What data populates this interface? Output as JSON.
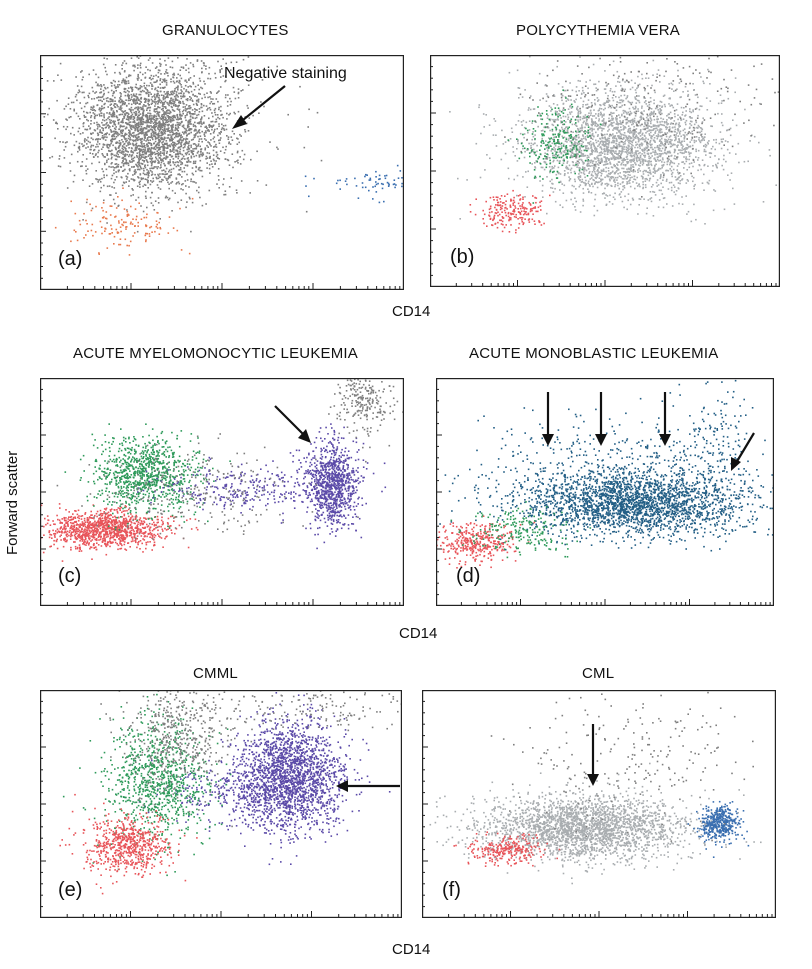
{
  "axis_label_x": "CD14",
  "axis_label_y": "Forward scatter",
  "colors": {
    "gray": "#7f7f7f",
    "light_gray": "#a9adb0",
    "red": "#e8555a",
    "orange": "#e87a4e",
    "green": "#2e9a5a",
    "purple": "#5b4aa8",
    "blue": "#3a6fb0",
    "teal": "#235f86"
  },
  "chart_data": [
    {
      "type": "scatter",
      "panel": "(a)",
      "title": "GRANULOCYTES",
      "xlabel": "CD14",
      "ylabel": "",
      "annotations": [
        "Negative staining"
      ],
      "populations": [
        {
          "color": "gray",
          "center": [
            0.3,
            0.68
          ],
          "spread": [
            0.1,
            0.13
          ],
          "n": 2600
        },
        {
          "color": "gray",
          "center": [
            0.34,
            0.78
          ],
          "spread": [
            0.14,
            0.16
          ],
          "n": 400
        },
        {
          "color": "orange",
          "center": [
            0.22,
            0.28
          ],
          "spread": [
            0.07,
            0.05
          ],
          "n": 140
        },
        {
          "color": "blue",
          "center": [
            0.9,
            0.46
          ],
          "spread": [
            0.07,
            0.04
          ],
          "n": 60
        }
      ]
    },
    {
      "type": "scatter",
      "panel": "(b)",
      "title": "POLYCYTHEMIA VERA",
      "xlabel": "",
      "ylabel": "",
      "annotations": [],
      "populations": [
        {
          "color": "light_gray",
          "center": [
            0.54,
            0.62
          ],
          "spread": [
            0.14,
            0.12
          ],
          "n": 2600
        },
        {
          "color": "green",
          "center": [
            0.36,
            0.62
          ],
          "spread": [
            0.05,
            0.08
          ],
          "n": 220
        },
        {
          "color": "red",
          "center": [
            0.23,
            0.33
          ],
          "spread": [
            0.05,
            0.04
          ],
          "n": 200
        },
        {
          "color": "gray",
          "center": [
            0.62,
            0.8
          ],
          "spread": [
            0.18,
            0.14
          ],
          "n": 250
        }
      ]
    },
    {
      "type": "scatter",
      "panel": "(c)",
      "title": "ACUTE MYELOMONOCYTIC LEUKEMIA",
      "xlabel": "CD14",
      "ylabel": "Forward scatter",
      "annotations": [],
      "populations": [
        {
          "color": "red",
          "center": [
            0.18,
            0.34
          ],
          "spread": [
            0.08,
            0.04
          ],
          "n": 1100
        },
        {
          "color": "green",
          "center": [
            0.29,
            0.58
          ],
          "spread": [
            0.07,
            0.08
          ],
          "n": 900
        },
        {
          "color": "purple",
          "center": [
            0.8,
            0.54
          ],
          "spread": [
            0.035,
            0.09
          ],
          "n": 900
        },
        {
          "color": "purple",
          "center": [
            0.58,
            0.52
          ],
          "spread": [
            0.13,
            0.05
          ],
          "n": 300
        },
        {
          "color": "gray",
          "center": [
            0.89,
            0.9
          ],
          "spread": [
            0.04,
            0.08
          ],
          "n": 250
        },
        {
          "color": "gray",
          "center": [
            0.42,
            0.5
          ],
          "spread": [
            0.14,
            0.1
          ],
          "n": 250
        }
      ]
    },
    {
      "type": "scatter",
      "panel": "(d)",
      "title": "ACUTE MONOBLASTIC LEUKEMIA",
      "xlabel": "",
      "ylabel": "",
      "annotations": [],
      "populations": [
        {
          "color": "teal",
          "center": [
            0.58,
            0.45
          ],
          "spread": [
            0.17,
            0.07
          ],
          "n": 2300
        },
        {
          "color": "teal",
          "center": [
            0.52,
            0.6
          ],
          "spread": [
            0.2,
            0.12
          ],
          "n": 500
        },
        {
          "color": "red",
          "center": [
            0.11,
            0.28
          ],
          "spread": [
            0.06,
            0.04
          ],
          "n": 350
        },
        {
          "color": "green",
          "center": [
            0.25,
            0.34
          ],
          "spread": [
            0.08,
            0.05
          ],
          "n": 200
        },
        {
          "color": "teal",
          "center": [
            0.83,
            0.72
          ],
          "spread": [
            0.06,
            0.14
          ],
          "n": 150
        }
      ]
    },
    {
      "type": "scatter",
      "panel": "(e)",
      "title": "CMML",
      "xlabel": "",
      "ylabel": "",
      "annotations": [],
      "populations": [
        {
          "color": "purple",
          "center": [
            0.69,
            0.62
          ],
          "spread": [
            0.07,
            0.12
          ],
          "n": 1900
        },
        {
          "color": "purple",
          "center": [
            0.55,
            0.55
          ],
          "spread": [
            0.11,
            0.07
          ],
          "n": 300
        },
        {
          "color": "green",
          "center": [
            0.33,
            0.6
          ],
          "spread": [
            0.07,
            0.13
          ],
          "n": 900
        },
        {
          "color": "gray",
          "center": [
            0.38,
            0.8
          ],
          "spread": [
            0.07,
            0.12
          ],
          "n": 450
        },
        {
          "color": "red",
          "center": [
            0.24,
            0.32
          ],
          "spread": [
            0.06,
            0.06
          ],
          "n": 650
        },
        {
          "color": "gray",
          "center": [
            0.7,
            0.92
          ],
          "spread": [
            0.2,
            0.06
          ],
          "n": 200
        }
      ]
    },
    {
      "type": "scatter",
      "panel": "(f)",
      "title": "CML",
      "xlabel": "CD14",
      "ylabel": "",
      "annotations": [],
      "populations": [
        {
          "color": "light_gray",
          "center": [
            0.45,
            0.4
          ],
          "spread": [
            0.15,
            0.07
          ],
          "n": 2400
        },
        {
          "color": "red",
          "center": [
            0.24,
            0.3
          ],
          "spread": [
            0.05,
            0.03
          ],
          "n": 260
        },
        {
          "color": "blue",
          "center": [
            0.84,
            0.42
          ],
          "spread": [
            0.03,
            0.04
          ],
          "n": 420
        },
        {
          "color": "gray",
          "center": [
            0.62,
            0.7
          ],
          "spread": [
            0.17,
            0.15
          ],
          "n": 220
        }
      ]
    }
  ]
}
